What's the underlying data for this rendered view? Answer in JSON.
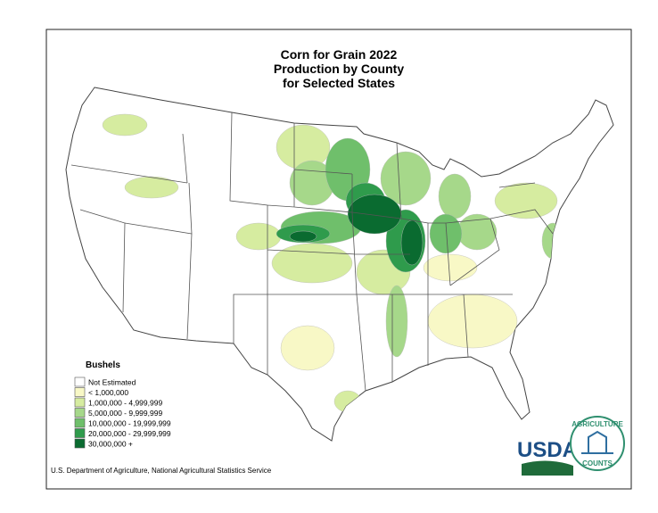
{
  "title": [
    "Corn for Grain 2022",
    "Production by County",
    "for Selected States"
  ],
  "legend": {
    "title": "Bushels",
    "items": [
      {
        "label": "Not Estimated",
        "color": "#ffffff"
      },
      {
        "label": "< 1,000,000",
        "color": "#f8f8c6"
      },
      {
        "label": "1,000,000 - 4,999,999",
        "color": "#d6eca0"
      },
      {
        "label": "5,000,000 -  9,999,999",
        "color": "#a6d88a"
      },
      {
        "label": "10,000,000 - 19,999,999",
        "color": "#6fbf6b"
      },
      {
        "label": "20,000,000 - 29,999,999",
        "color": "#2f9b4c"
      },
      {
        "label": "30,000,000 +",
        "color": "#0a6b30"
      }
    ]
  },
  "source": "U.S. Department of Agriculture, National Agricultural Statistics Service",
  "logos": {
    "usda": "USDA",
    "agriculture": "AGRICULTURE",
    "counts": "COUNTS"
  }
}
